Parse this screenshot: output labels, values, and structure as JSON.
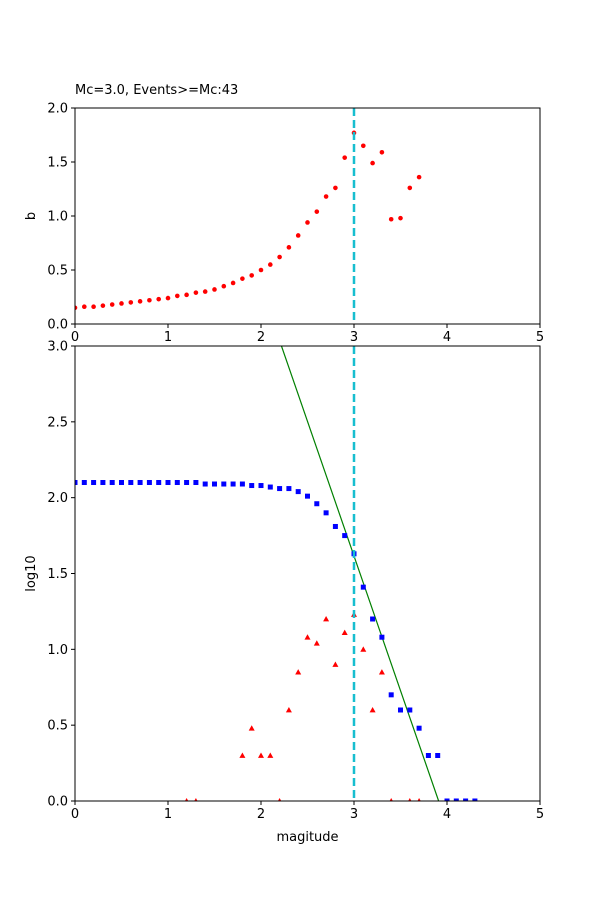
{
  "chart_data": [
    {
      "type": "scatter",
      "title": "Mc=3.0, Events>=Mc:43",
      "xlabel": "",
      "ylabel": "b",
      "xlim": [
        0,
        5
      ],
      "ylim": [
        0,
        2.0
      ],
      "xticks": [
        "0",
        "1",
        "2",
        "3",
        "4",
        "5"
      ],
      "yticks": [
        "0.0",
        "0.5",
        "1.0",
        "1.5",
        "2.0"
      ],
      "grid": false,
      "series": [
        {
          "marker": "circle",
          "color": "#ff0000",
          "x": [
            0.0,
            0.1,
            0.2,
            0.3,
            0.4,
            0.5,
            0.6,
            0.7,
            0.8,
            0.9,
            1.0,
            1.1,
            1.2,
            1.3,
            1.4,
            1.5,
            1.6,
            1.7,
            1.8,
            1.9,
            2.0,
            2.1,
            2.2,
            2.3,
            2.4,
            2.5,
            2.6,
            2.7,
            2.8,
            2.9,
            3.0,
            3.1,
            3.2,
            3.3,
            3.4,
            3.5,
            3.6,
            3.7
          ],
          "y": [
            0.15,
            0.16,
            0.16,
            0.17,
            0.18,
            0.19,
            0.2,
            0.21,
            0.22,
            0.23,
            0.24,
            0.26,
            0.27,
            0.29,
            0.3,
            0.32,
            0.35,
            0.38,
            0.42,
            0.45,
            0.5,
            0.55,
            0.62,
            0.71,
            0.82,
            0.94,
            1.04,
            1.18,
            1.26,
            1.54,
            1.77,
            1.65,
            1.49,
            1.59,
            0.97,
            0.98,
            1.26,
            1.36
          ]
        }
      ],
      "vline": {
        "x": 3.0,
        "color": "#17becf",
        "style": "dashed"
      }
    },
    {
      "type": "scatter",
      "title": "",
      "xlabel": "magitude",
      "ylabel": "log10",
      "xlim": [
        0,
        5
      ],
      "ylim": [
        0,
        3.0
      ],
      "xticks": [
        "0",
        "1",
        "2",
        "3",
        "4",
        "5"
      ],
      "yticks": [
        "0.0",
        "0.5",
        "1.0",
        "1.5",
        "2.0",
        "2.5",
        "3.0"
      ],
      "grid": false,
      "series": [
        {
          "marker": "square",
          "color": "#0000ff",
          "x": [
            0.0,
            0.1,
            0.2,
            0.3,
            0.4,
            0.5,
            0.6,
            0.7,
            0.8,
            0.9,
            1.0,
            1.1,
            1.2,
            1.3,
            1.4,
            1.5,
            1.6,
            1.7,
            1.8,
            1.9,
            2.0,
            2.1,
            2.2,
            2.3,
            2.4,
            2.5,
            2.6,
            2.7,
            2.8,
            2.9,
            3.0,
            3.1,
            3.2,
            3.3,
            3.4,
            3.5,
            3.6,
            3.7,
            3.8,
            3.9,
            4.0,
            4.1,
            4.2,
            4.3
          ],
          "y": [
            2.1,
            2.1,
            2.1,
            2.1,
            2.1,
            2.1,
            2.1,
            2.1,
            2.1,
            2.1,
            2.1,
            2.1,
            2.1,
            2.1,
            2.09,
            2.09,
            2.09,
            2.09,
            2.09,
            2.08,
            2.08,
            2.07,
            2.06,
            2.06,
            2.04,
            2.01,
            1.96,
            1.9,
            1.81,
            1.75,
            1.63,
            1.41,
            1.2,
            1.08,
            0.7,
            0.6,
            0.6,
            0.48,
            0.3,
            0.3,
            0.0,
            0.0,
            0.0,
            0.0
          ]
        },
        {
          "marker": "triangle",
          "color": "#ff0000",
          "x": [
            1.2,
            1.3,
            1.8,
            1.9,
            2.0,
            2.1,
            2.2,
            2.3,
            2.4,
            2.5,
            2.6,
            2.7,
            2.8,
            2.9,
            3.0,
            3.1,
            3.2,
            3.3,
            3.4,
            3.6,
            3.7
          ],
          "y": [
            0.0,
            0.0,
            0.3,
            0.48,
            0.3,
            0.3,
            0.0,
            0.6,
            0.85,
            1.08,
            1.04,
            1.2,
            0.9,
            1.11,
            1.23,
            1.0,
            0.6,
            0.85,
            0.0,
            0.0,
            0.0
          ]
        }
      ],
      "fit_line": {
        "color": "#008000",
        "x": [
          2.22,
          3.91
        ],
        "y": [
          3.0,
          0.0
        ]
      },
      "vline": {
        "x": 3.0,
        "color": "#17becf",
        "style": "dashed"
      }
    }
  ]
}
